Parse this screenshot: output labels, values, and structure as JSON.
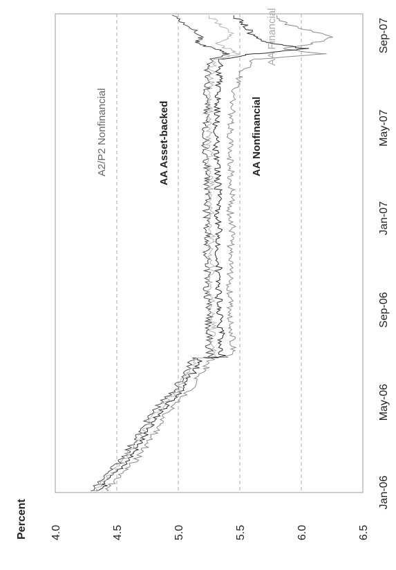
{
  "chart_data": {
    "type": "line",
    "title": "",
    "xlabel": "",
    "ylabel": "Percent",
    "ylim": [
      4.0,
      6.5
    ],
    "yticks": [
      "4.0",
      "4.5",
      "5.0",
      "5.5",
      "6.0",
      "6.5"
    ],
    "xlim": [
      "2006-01-01",
      "2007-09-30"
    ],
    "xticks": [
      {
        "date": "2006-01-01",
        "label": "Jan-06"
      },
      {
        "date": "2006-05-01",
        "label": "May-06"
      },
      {
        "date": "2006-09-01",
        "label": "Sep-06"
      },
      {
        "date": "2007-01-01",
        "label": "Jan-07"
      },
      {
        "date": "2007-05-01",
        "label": "May-07"
      },
      {
        "date": "2007-09-01",
        "label": "Sep-07"
      }
    ],
    "grid": {
      "horizontal": true,
      "vertical": false,
      "style": "dashed"
    },
    "series": [
      {
        "name": "A2/P2 Nonfinancial",
        "color": "#8a8a8a",
        "x": [
          "2006-01-03",
          "2006-01-15",
          "2006-02-01",
          "2006-02-15",
          "2006-03-01",
          "2006-03-15",
          "2006-04-01",
          "2006-04-15",
          "2006-05-01",
          "2006-05-15",
          "2006-06-01",
          "2006-06-15",
          "2006-06-29",
          "2006-07-01",
          "2006-07-15",
          "2006-08-01",
          "2006-08-15",
          "2006-09-01",
          "2006-09-15",
          "2006-10-01",
          "2006-10-15",
          "2006-11-01",
          "2006-11-15",
          "2006-12-01",
          "2006-12-15",
          "2007-01-01",
          "2007-01-15",
          "2007-02-01",
          "2007-02-15",
          "2007-03-01",
          "2007-03-15",
          "2007-04-01",
          "2007-04-15",
          "2007-05-01",
          "2007-05-15",
          "2007-06-01",
          "2007-06-15",
          "2007-07-01",
          "2007-07-15",
          "2007-08-01",
          "2007-08-08",
          "2007-08-15",
          "2007-08-22",
          "2007-09-01",
          "2007-09-15",
          "2007-09-28"
        ],
        "y": [
          4.42,
          4.47,
          4.58,
          4.66,
          4.72,
          4.78,
          4.85,
          4.9,
          4.98,
          5.08,
          5.15,
          5.22,
          5.27,
          5.42,
          5.45,
          5.44,
          5.43,
          5.43,
          5.42,
          5.42,
          5.42,
          5.42,
          5.41,
          5.43,
          5.44,
          5.43,
          5.42,
          5.44,
          5.43,
          5.43,
          5.43,
          5.42,
          5.42,
          5.42,
          5.43,
          5.44,
          5.45,
          5.48,
          5.52,
          5.62,
          6.2,
          5.85,
          6.1,
          6.25,
          5.9,
          5.8
        ]
      },
      {
        "name": "AA Asset-backed",
        "color": "#2a2a2a",
        "x": [
          "2006-01-03",
          "2006-01-15",
          "2006-02-01",
          "2006-02-15",
          "2006-03-01",
          "2006-03-15",
          "2006-04-01",
          "2006-04-15",
          "2006-05-01",
          "2006-05-15",
          "2006-06-01",
          "2006-06-15",
          "2006-06-29",
          "2006-07-01",
          "2006-07-15",
          "2006-08-01",
          "2006-08-15",
          "2006-09-01",
          "2006-09-15",
          "2006-10-01",
          "2006-10-15",
          "2006-11-01",
          "2006-11-15",
          "2006-12-01",
          "2006-12-15",
          "2007-01-01",
          "2007-01-15",
          "2007-02-01",
          "2007-02-15",
          "2007-03-01",
          "2007-03-15",
          "2007-04-01",
          "2007-04-15",
          "2007-05-01",
          "2007-05-15",
          "2007-06-01",
          "2007-06-15",
          "2007-07-01",
          "2007-07-15",
          "2007-08-01",
          "2007-08-08",
          "2007-08-15",
          "2007-08-22",
          "2007-09-01",
          "2007-09-15",
          "2007-09-28"
        ],
        "y": [
          4.36,
          4.42,
          4.52,
          4.6,
          4.66,
          4.72,
          4.79,
          4.84,
          4.92,
          5.02,
          5.08,
          5.14,
          5.18,
          5.36,
          5.35,
          5.35,
          5.34,
          5.33,
          5.33,
          5.32,
          5.32,
          5.33,
          5.32,
          5.33,
          5.33,
          5.32,
          5.32,
          5.33,
          5.32,
          5.32,
          5.32,
          5.31,
          5.31,
          5.31,
          5.31,
          5.32,
          5.32,
          5.33,
          5.33,
          5.35,
          5.6,
          6.05,
          5.75,
          5.6,
          5.55,
          5.45
        ]
      },
      {
        "name": "AA Nonfinancial",
        "color": "#4a4a4a",
        "x": [
          "2006-01-03",
          "2006-01-15",
          "2006-02-01",
          "2006-02-15",
          "2006-03-01",
          "2006-03-15",
          "2006-04-01",
          "2006-04-15",
          "2006-05-01",
          "2006-05-15",
          "2006-06-01",
          "2006-06-15",
          "2006-06-29",
          "2006-07-01",
          "2006-07-15",
          "2006-08-01",
          "2006-08-15",
          "2006-09-01",
          "2006-09-15",
          "2006-10-01",
          "2006-10-15",
          "2006-11-01",
          "2006-11-15",
          "2006-12-01",
          "2006-12-15",
          "2007-01-01",
          "2007-01-15",
          "2007-02-01",
          "2007-02-15",
          "2007-03-01",
          "2007-03-15",
          "2007-04-01",
          "2007-04-15",
          "2007-05-01",
          "2007-05-15",
          "2007-06-01",
          "2007-06-15",
          "2007-07-01",
          "2007-07-15",
          "2007-08-01",
          "2007-08-08",
          "2007-08-15",
          "2007-08-22",
          "2007-09-01",
          "2007-09-15",
          "2007-09-28"
        ],
        "y": [
          4.3,
          4.36,
          4.46,
          4.54,
          4.6,
          4.66,
          4.73,
          4.78,
          4.86,
          4.96,
          5.02,
          5.08,
          5.12,
          5.26,
          5.25,
          5.25,
          5.25,
          5.24,
          5.24,
          5.23,
          5.23,
          5.24,
          5.23,
          5.24,
          5.24,
          5.23,
          5.23,
          5.24,
          5.23,
          5.23,
          5.23,
          5.22,
          5.22,
          5.22,
          5.22,
          5.23,
          5.23,
          5.24,
          5.24,
          5.26,
          5.4,
          5.3,
          5.15,
          5.2,
          5.05,
          4.95
        ]
      },
      {
        "name": "AA Financial",
        "color": "#b4b4b4",
        "x": [
          "2006-01-03",
          "2006-01-15",
          "2006-02-01",
          "2006-02-15",
          "2006-03-01",
          "2006-03-15",
          "2006-04-01",
          "2006-04-15",
          "2006-05-01",
          "2006-05-15",
          "2006-06-01",
          "2006-06-15",
          "2006-06-29",
          "2006-07-01",
          "2006-07-15",
          "2006-08-01",
          "2006-08-15",
          "2006-09-01",
          "2006-09-15",
          "2006-10-01",
          "2006-10-15",
          "2006-11-01",
          "2006-11-15",
          "2006-12-01",
          "2006-12-15",
          "2007-01-01",
          "2007-01-15",
          "2007-02-01",
          "2007-02-15",
          "2007-03-01",
          "2007-03-15",
          "2007-04-01",
          "2007-04-15",
          "2007-05-01",
          "2007-05-15",
          "2007-06-01",
          "2007-06-15",
          "2007-07-01",
          "2007-07-15",
          "2007-08-01",
          "2007-08-08",
          "2007-08-15",
          "2007-08-22",
          "2007-09-01",
          "2007-09-15",
          "2007-09-28"
        ],
        "y": [
          4.33,
          4.39,
          4.49,
          4.57,
          4.63,
          4.69,
          4.76,
          4.81,
          4.89,
          4.99,
          5.05,
          5.11,
          5.15,
          5.29,
          5.28,
          5.28,
          5.28,
          5.27,
          5.27,
          5.26,
          5.26,
          5.27,
          5.26,
          5.27,
          5.27,
          5.26,
          5.26,
          5.27,
          5.26,
          5.26,
          5.26,
          5.25,
          5.25,
          5.25,
          5.25,
          5.26,
          5.26,
          5.27,
          5.27,
          5.29,
          5.5,
          5.4,
          5.3,
          5.45,
          5.35,
          5.25
        ]
      }
    ]
  }
}
